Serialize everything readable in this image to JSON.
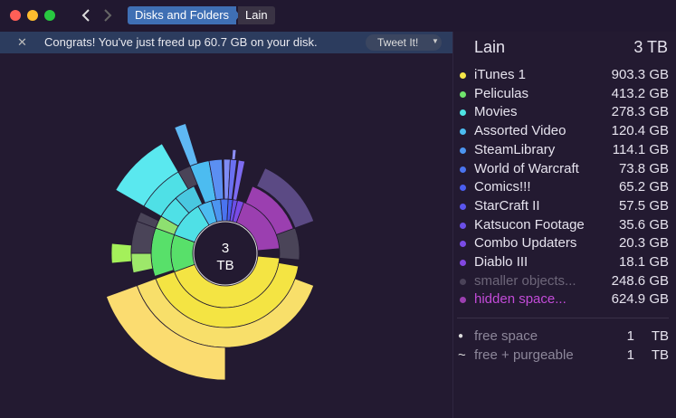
{
  "toolbar": {
    "breadcrumb": [
      "Disks and Folders",
      "Lain"
    ]
  },
  "banner": {
    "message": "Congrats! You've just freed up 60.7 GB on your disk.",
    "button": "Tweet It!"
  },
  "center": {
    "value": "3",
    "unit": "TB"
  },
  "panel": {
    "title": "Lain",
    "total": "3 TB",
    "items": [
      {
        "name": "iTunes 1",
        "size": "903.3 GB",
        "color": "#f6e648"
      },
      {
        "name": "Peliculas",
        "size": "413.2 GB",
        "color": "#6fe36c"
      },
      {
        "name": "Movies",
        "size": "278.3 GB",
        "color": "#4ee3e3"
      },
      {
        "name": "Assorted Video",
        "size": "120.4 GB",
        "color": "#4cbcf0"
      },
      {
        "name": "SteamLibrary",
        "size": "114.1 GB",
        "color": "#4c95f0"
      },
      {
        "name": "World of Warcraft",
        "size": "73.8 GB",
        "color": "#4a74ef"
      },
      {
        "name": "Comics!!!",
        "size": "65.2 GB",
        "color": "#4a5ef0"
      },
      {
        "name": "StarCraft II",
        "size": "57.5 GB",
        "color": "#5a55ef"
      },
      {
        "name": "Katsucon Footage",
        "size": "35.6 GB",
        "color": "#6b4fe8"
      },
      {
        "name": "Combo Updaters",
        "size": "20.3 GB",
        "color": "#7a4be6"
      },
      {
        "name": "Diablo III",
        "size": "18.1 GB",
        "color": "#8347e2"
      },
      {
        "name": "smaller objects...",
        "size": "248.6 GB",
        "color": "#3a3344"
      },
      {
        "name": "hidden space...",
        "size": "624.9 GB",
        "color": "#9b3fb0"
      }
    ],
    "free": [
      {
        "symbol": "●",
        "name": "free space",
        "value": "1",
        "unit": "TB"
      },
      {
        "symbol": "~",
        "name": "free + purgeable",
        "value": "1",
        "unit": "TB"
      }
    ]
  }
}
